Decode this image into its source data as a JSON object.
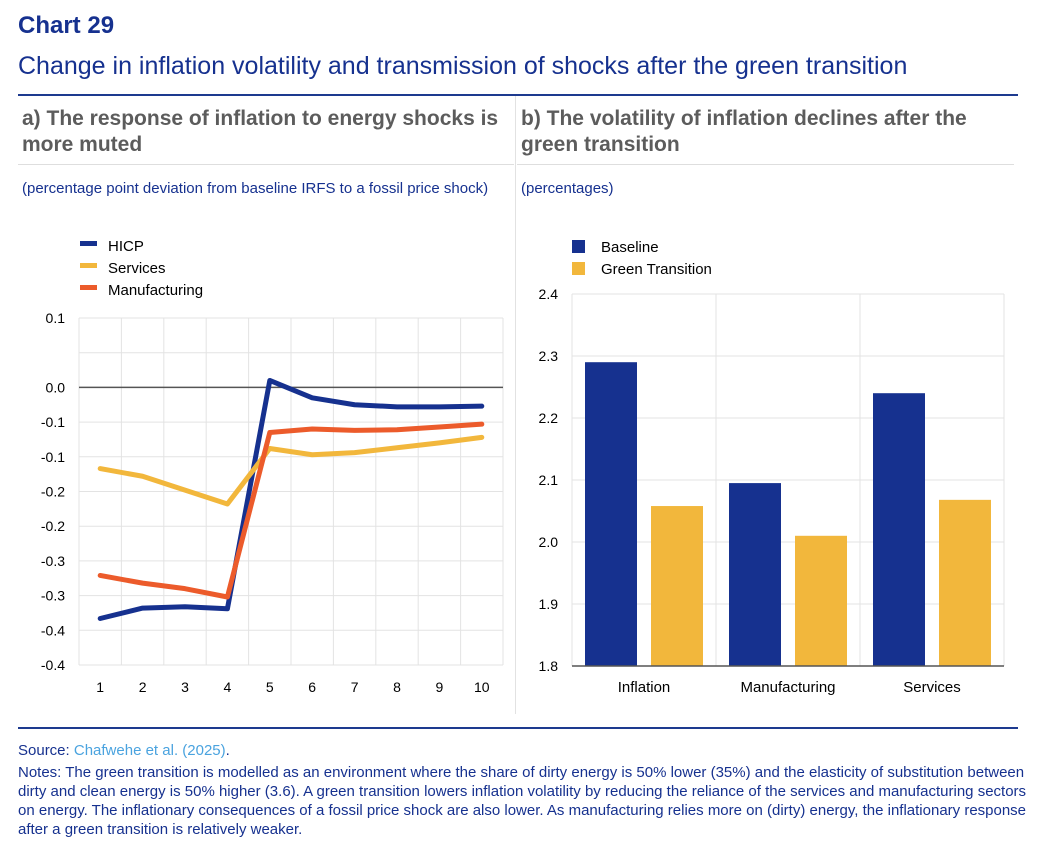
{
  "header": {
    "chart_number": "Chart 29",
    "title": "Change in inflation volatility and transmission of shocks after the green transition"
  },
  "panels": {
    "a": {
      "title": "a)   The response of inflation to energy shocks is more muted",
      "subtitle": "(percentage point deviation from baseline IRFS to a fossil price shock)"
    },
    "b": {
      "title": "b)   The volatility of inflation declines after the green transition",
      "subtitle": "(percentages)"
    }
  },
  "footer": {
    "source_label": "Source: ",
    "source_link": "Chafwehe et al. (2025)",
    "source_end": ".",
    "notes": "Notes: The green transition is modelled as an environment where the share of dirty energy is 50% lower (35%) and the elasticity of substitution between dirty and clean energy is 50% higher (3.6). A green transition lowers inflation volatility by reducing the reliance of the services and manufacturing sectors on energy. The inflationary consequences of a fossil price shock are also lower. As manufacturing relies more on (dirty) energy, the inflationary response after a green transition is relatively weaker."
  },
  "chart_data": [
    {
      "type": "line",
      "title": "The response of inflation to energy shocks is more muted",
      "ylabel": "percentage point deviation from baseline IRFS to a fossil price shock",
      "xlabel": "",
      "x": [
        1,
        2,
        3,
        4,
        5,
        6,
        7,
        8,
        9,
        10
      ],
      "ylim": [
        -0.4,
        0.1
      ],
      "ytick_values": [
        0.1,
        0.05,
        0.0,
        -0.05,
        -0.1,
        -0.15,
        -0.2,
        -0.25,
        -0.3,
        -0.35,
        -0.4
      ],
      "ytick_labels": [
        "0.1",
        "0.0",
        "-0.1",
        "-0.1",
        "-0.2",
        "-0.2",
        "-0.3",
        "-0.3",
        "-0.4"
      ],
      "ytick_label_values": [
        0.1,
        0.0,
        -0.05,
        -0.1,
        -0.15,
        -0.2,
        -0.25,
        -0.3,
        -0.35
      ],
      "grid": true,
      "legend": "top-left",
      "series": [
        {
          "name": "HICP",
          "color": "#16318f",
          "values": [
            -0.333,
            -0.318,
            -0.316,
            -0.319,
            0.01,
            -0.015,
            -0.025,
            -0.028,
            -0.028,
            -0.027
          ]
        },
        {
          "name": "Services",
          "color": "#f2b73c",
          "values": [
            -0.117,
            -0.128,
            -0.148,
            -0.168,
            -0.088,
            -0.097,
            -0.094,
            -0.087,
            -0.08,
            -0.072
          ]
        },
        {
          "name": "Manufacturing",
          "color": "#ec5b2b",
          "values": [
            -0.271,
            -0.282,
            -0.29,
            -0.302,
            -0.065,
            -0.06,
            -0.062,
            -0.061,
            -0.057,
            -0.053
          ]
        }
      ]
    },
    {
      "type": "bar",
      "title": "The volatility of inflation declines after the green transition",
      "ylabel": "percentages",
      "xlabel": "",
      "categories": [
        "Inflation",
        "Manufacturing",
        "Services"
      ],
      "ylim": [
        1.8,
        2.4
      ],
      "ytick_values": [
        2.4,
        2.3,
        2.2,
        2.1,
        2.0,
        1.9,
        1.8
      ],
      "ytick_labels": [
        "2.4",
        "2.3",
        "2.2",
        "2.1",
        "2.0",
        "1.9",
        "1.8"
      ],
      "grid": true,
      "legend": "top-left",
      "series": [
        {
          "name": "Baseline",
          "color": "#16318f",
          "values": [
            2.29,
            2.095,
            2.24
          ]
        },
        {
          "name": "Green Transition",
          "color": "#f2b73c",
          "values": [
            2.058,
            2.01,
            2.068
          ]
        }
      ]
    }
  ]
}
